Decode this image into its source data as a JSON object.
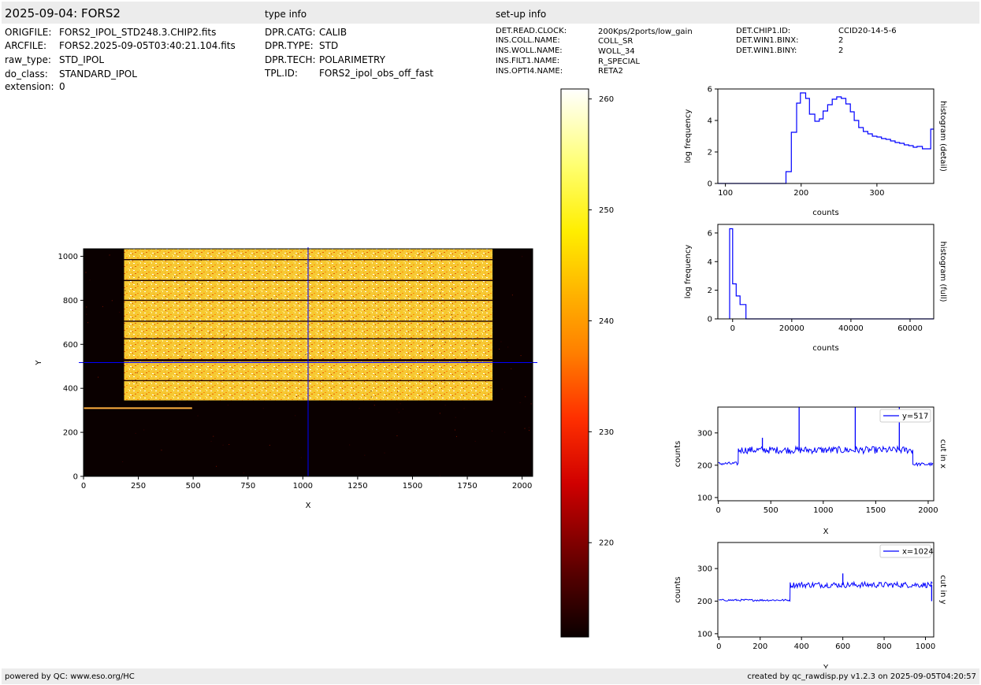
{
  "header": {
    "title": "2025-09-04: FORS2",
    "type_info_label": "type info",
    "setup_info_label": "set-up info"
  },
  "file_info": [
    {
      "key": "ORIGFILE:",
      "value": "FORS2_IPOL_STD248.3.CHIP2.fits"
    },
    {
      "key": "ARCFILE:",
      "value": "FORS2.2025-09-05T03:40:21.104.fits"
    },
    {
      "key": "raw_type:",
      "value": "STD_IPOL"
    },
    {
      "key": "do_class:",
      "value": "STANDARD_IPOL"
    },
    {
      "key": "extension:",
      "value": "0"
    }
  ],
  "type_info": [
    {
      "key": "DPR.CATG:",
      "value": "CALIB"
    },
    {
      "key": "DPR.TYPE:",
      "value": "STD"
    },
    {
      "key": "DPR.TECH:",
      "value": "POLARIMETRY"
    },
    {
      "key": "TPL.ID:",
      "value": "FORS2_ipol_obs_off_fast"
    }
  ],
  "setup_info_col1": [
    {
      "key": "DET.READ.CLOCK:",
      "value": "200Kps/2ports/low_gain"
    },
    {
      "key": "INS.COLL.NAME:",
      "value": "COLL_SR"
    },
    {
      "key": "INS.WOLL.NAME:",
      "value": "WOLL_34"
    },
    {
      "key": "INS.FILT1.NAME:",
      "value": "R_SPECIAL"
    },
    {
      "key": "INS.OPTI4.NAME:",
      "value": "RETA2"
    }
  ],
  "setup_info_col2": [
    {
      "key": "DET.CHIP1.ID:",
      "value": "CCID20-14-5-6"
    },
    {
      "key": "DET.WIN1.BINX:",
      "value": "2"
    },
    {
      "key": "DET.WIN1.BINY:",
      "value": "2"
    }
  ],
  "footer": {
    "left": "powered by QC: www.eso.org/HC",
    "right": "created by qc_rawdisp.py v1.2.3 on 2025-09-05T04:20:57"
  },
  "chart_data": [
    {
      "type": "heatmap",
      "name": "detector-image",
      "xlabel": "X",
      "ylabel": "Y",
      "xlim": [
        0,
        2048
      ],
      "ylim": [
        0,
        1034
      ],
      "xticks": [
        0,
        250,
        500,
        750,
        1000,
        1250,
        1500,
        1750,
        2000
      ],
      "yticks": [
        0,
        200,
        400,
        600,
        800,
        1000
      ],
      "illuminated_region": {
        "x": [
          185,
          1865
        ],
        "y": [
          345,
          1034
        ]
      },
      "spectrum_strip": {
        "x": [
          0,
          495
        ],
        "y": 310
      },
      "bright_rows": [
        985,
        890,
        800,
        705,
        625,
        530,
        525,
        435
      ],
      "crosshair": {
        "x": 1024,
        "y": 517
      },
      "colormap": "hot",
      "colors": {
        "crosshair": "#0000ff",
        "background": "#0a0000"
      }
    },
    {
      "type": "colorbar",
      "name": "colorbar",
      "range": [
        211.5,
        260.9
      ],
      "ticks": [
        220,
        230,
        240,
        250,
        260
      ]
    },
    {
      "type": "line",
      "name": "histogram-detail",
      "side_label": "histogram (detail)",
      "xlabel": "counts",
      "ylabel": "log frequency",
      "xlim": [
        90,
        375
      ],
      "ylim": [
        0,
        6
      ],
      "xticks": [
        100,
        200,
        300
      ],
      "yticks": [
        0,
        2,
        4,
        6
      ],
      "steps": [
        [
          90,
          0
        ],
        [
          180,
          0
        ],
        [
          180,
          0.75
        ],
        [
          187,
          0.75
        ],
        [
          187,
          3.25
        ],
        [
          194,
          3.25
        ],
        [
          194,
          5.1
        ],
        [
          199,
          5.1
        ],
        [
          199,
          5.75
        ],
        [
          206,
          5.75
        ],
        [
          206,
          5.4
        ],
        [
          211,
          5.4
        ],
        [
          211,
          4.4
        ],
        [
          218,
          4.4
        ],
        [
          218,
          3.95
        ],
        [
          224,
          3.95
        ],
        [
          224,
          4.1
        ],
        [
          229,
          4.1
        ],
        [
          229,
          4.6
        ],
        [
          235,
          4.6
        ],
        [
          235,
          5.0
        ],
        [
          241,
          5.0
        ],
        [
          241,
          5.35
        ],
        [
          247,
          5.35
        ],
        [
          247,
          5.5
        ],
        [
          253,
          5.5
        ],
        [
          253,
          5.4
        ],
        [
          259,
          5.4
        ],
        [
          259,
          5.05
        ],
        [
          265,
          5.05
        ],
        [
          265,
          4.55
        ],
        [
          270,
          4.55
        ],
        [
          270,
          4.0
        ],
        [
          276,
          4.0
        ],
        [
          276,
          3.55
        ],
        [
          282,
          3.55
        ],
        [
          282,
          3.3
        ],
        [
          288,
          3.3
        ],
        [
          288,
          3.15
        ],
        [
          294,
          3.15
        ],
        [
          294,
          3.0
        ],
        [
          300,
          3.0
        ],
        [
          300,
          2.95
        ],
        [
          306,
          2.95
        ],
        [
          306,
          2.85
        ],
        [
          312,
          2.85
        ],
        [
          312,
          2.8
        ],
        [
          318,
          2.8
        ],
        [
          318,
          2.7
        ],
        [
          324,
          2.7
        ],
        [
          324,
          2.6
        ],
        [
          330,
          2.6
        ],
        [
          330,
          2.55
        ],
        [
          336,
          2.55
        ],
        [
          336,
          2.45
        ],
        [
          342,
          2.45
        ],
        [
          342,
          2.4
        ],
        [
          348,
          2.4
        ],
        [
          348,
          2.3
        ],
        [
          353,
          2.3
        ],
        [
          353,
          2.35
        ],
        [
          360,
          2.35
        ],
        [
          360,
          2.2
        ],
        [
          371,
          2.2
        ],
        [
          371,
          3.45
        ],
        [
          375,
          3.45
        ]
      ],
      "colors": {
        "line": "#0000ff"
      }
    },
    {
      "type": "line",
      "name": "histogram-full",
      "side_label": "histogram (full)",
      "xlabel": "counts",
      "ylabel": "log frequency",
      "xlim": [
        -5000,
        68000
      ],
      "ylim": [
        0,
        6.6
      ],
      "xticks": [
        0,
        20000,
        40000,
        60000
      ],
      "yticks": [
        0,
        2,
        4,
        6
      ],
      "steps": [
        [
          -1000,
          0
        ],
        [
          -1000,
          6.3
        ],
        [
          0,
          6.3
        ],
        [
          0,
          2.45
        ],
        [
          1200,
          2.45
        ],
        [
          1200,
          1.6
        ],
        [
          2500,
          1.6
        ],
        [
          2500,
          1.0
        ],
        [
          4500,
          1.0
        ],
        [
          4500,
          0
        ],
        [
          68000,
          0
        ]
      ],
      "colors": {
        "line": "#0000ff"
      }
    },
    {
      "type": "line",
      "name": "cut-in-x",
      "side_label": "cut in x",
      "legend": "y=517",
      "xlabel": "X",
      "ylabel": "counts",
      "xlim": [
        -5,
        2053
      ],
      "ylim": [
        90,
        380
      ],
      "xticks": [
        0,
        500,
        1000,
        1500,
        2000
      ],
      "yticks": [
        100,
        200,
        300
      ],
      "segments": [
        {
          "x": [
            0,
            190
          ],
          "mean": 205,
          "noise": 5
        },
        {
          "x": [
            190,
            1855
          ],
          "mean": 247,
          "noise": 11
        },
        {
          "x": [
            1855,
            2048
          ],
          "mean": 203,
          "noise": 5
        }
      ],
      "spikes": [
        [
          420,
          285
        ],
        [
          770,
          380
        ],
        [
          1305,
          380
        ],
        [
          1725,
          380
        ]
      ],
      "colors": {
        "line": "#0000ff"
      }
    },
    {
      "type": "line",
      "name": "cut-in-y",
      "side_label": "cut in y",
      "legend": "x=1024",
      "xlabel": "Y",
      "ylabel": "counts",
      "xlim": [
        -5,
        1040
      ],
      "ylim": [
        90,
        380
      ],
      "xticks": [
        0,
        200,
        400,
        600,
        800,
        1000
      ],
      "yticks": [
        100,
        200,
        300
      ],
      "segments": [
        {
          "x": [
            0,
            345
          ],
          "mean": 203,
          "noise": 3
        },
        {
          "x": [
            345,
            1034
          ],
          "mean": 250,
          "noise": 9
        }
      ],
      "spikes": [
        [
          600,
          285
        ],
        [
          1030,
          200
        ]
      ],
      "colors": {
        "line": "#0000ff"
      }
    }
  ]
}
